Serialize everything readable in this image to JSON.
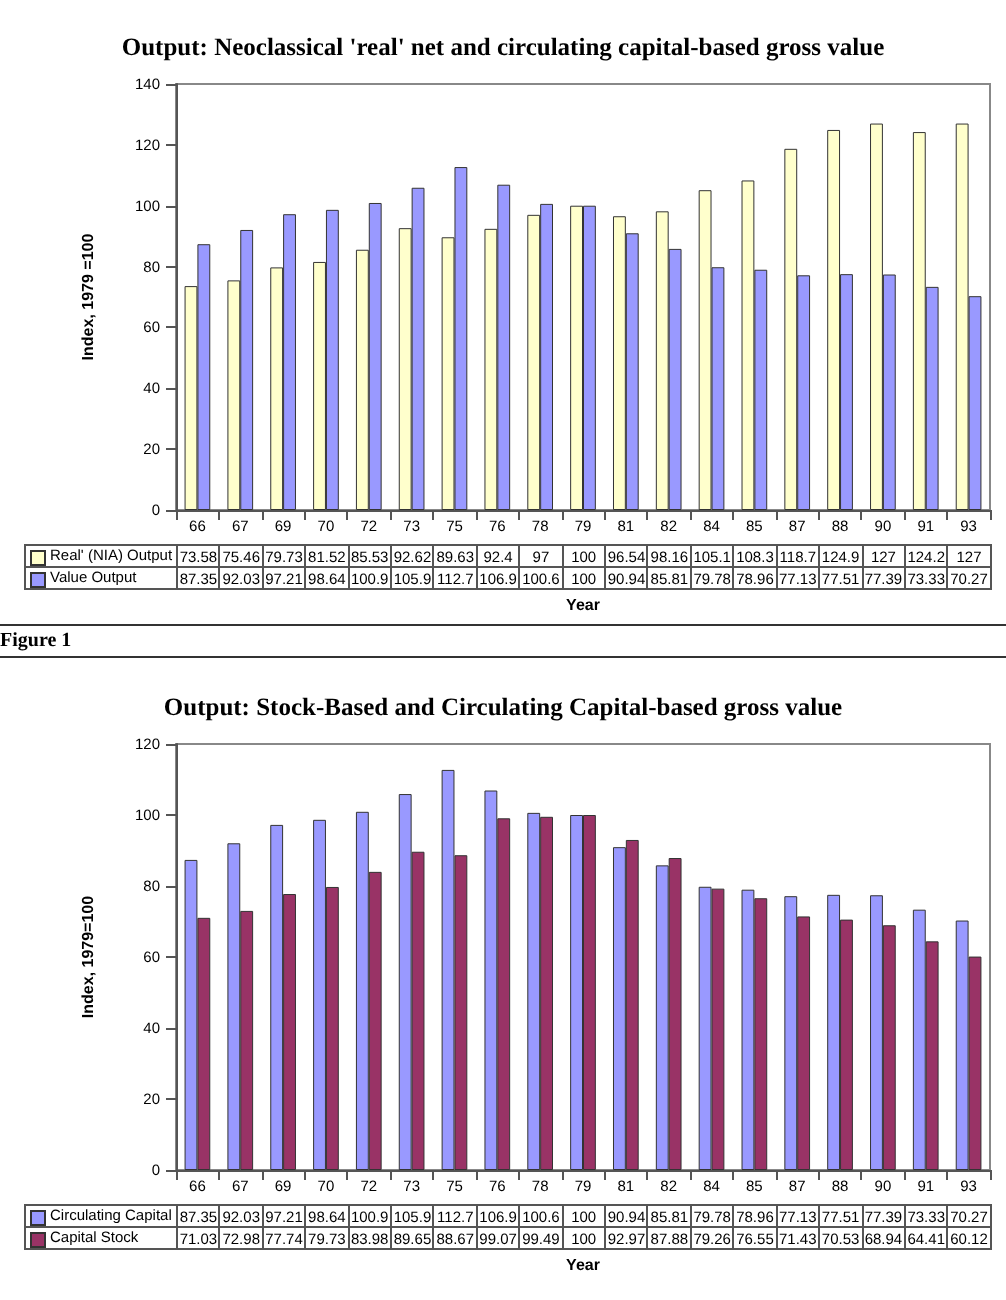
{
  "chart_data": [
    {
      "type": "bar",
      "title": "Output: Neoclassical 'real' net and circulating capital-based gross value",
      "xlabel": "Year",
      "ylabel": "Index, 1979 =100",
      "categories": [
        "66",
        "67",
        "69",
        "70",
        "72",
        "73",
        "75",
        "76",
        "78",
        "79",
        "81",
        "82",
        "84",
        "85",
        "87",
        "88",
        "90",
        "91",
        "93"
      ],
      "series": [
        {
          "name": "Real' (NIA) Output",
          "color": "#ffffcc",
          "values": [
            73.58,
            75.46,
            79.73,
            81.52,
            85.53,
            92.62,
            89.63,
            92.4,
            97,
            100,
            96.54,
            98.16,
            105.1,
            108.3,
            118.7,
            124.9,
            127,
            124.2,
            127
          ]
        },
        {
          "name": "Value Output",
          "color": "#9999ff",
          "values": [
            87.35,
            92.03,
            97.21,
            98.64,
            100.9,
            105.9,
            112.7,
            106.9,
            100.6,
            100,
            90.94,
            85.81,
            79.78,
            78.96,
            77.13,
            77.51,
            77.39,
            73.33,
            70.27
          ]
        }
      ],
      "ylim": [
        0,
        140
      ],
      "yticks": [
        0,
        20,
        40,
        60,
        80,
        100,
        120,
        140
      ],
      "grid": false,
      "legend": "bottom left",
      "data_labels": true,
      "annotations": [
        "Figure 1"
      ]
    },
    {
      "type": "bar",
      "title": "Output: Stock-Based and Circulating Capital-based gross value",
      "xlabel": "Year",
      "ylabel": "Index, 1979=100",
      "categories": [
        "66",
        "67",
        "69",
        "70",
        "72",
        "73",
        "75",
        "76",
        "78",
        "79",
        "81",
        "82",
        "84",
        "85",
        "87",
        "88",
        "90",
        "91",
        "93"
      ],
      "series": [
        {
          "name": "Circulating Capital",
          "color": "#9999ff",
          "values": [
            87.35,
            92.03,
            97.21,
            98.64,
            100.9,
            105.9,
            112.7,
            106.9,
            100.6,
            100,
            90.94,
            85.81,
            79.78,
            78.96,
            77.13,
            77.51,
            77.39,
            73.33,
            70.27
          ]
        },
        {
          "name": "Capital Stock",
          "color": "#993366",
          "values": [
            71.03,
            72.98,
            77.74,
            79.73,
            83.98,
            89.65,
            88.67,
            99.07,
            99.49,
            100,
            92.97,
            87.88,
            79.26,
            76.55,
            71.43,
            70.53,
            68.94,
            64.41,
            60.12
          ]
        }
      ],
      "ylim": [
        0,
        120
      ],
      "yticks": [
        0,
        20,
        40,
        60,
        80,
        100,
        120
      ],
      "grid": false,
      "legend": "bottom left",
      "data_labels": true
    }
  ]
}
